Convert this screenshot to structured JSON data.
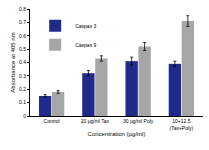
{
  "chart_data": {
    "type": "bar",
    "x_label": "Concentration (µg/ml)",
    "y_label": "Absorbance at 405 nm",
    "categories": [
      "Control",
      "10 µg/ml Tax",
      "30 µg/ml Poly",
      "10+12.5 (Tax+Poly)"
    ],
    "series": [
      {
        "name": "Caspas 3",
        "color": "#1f2a8a",
        "values": [
          0.15,
          0.32,
          0.41,
          0.39
        ],
        "errors": [
          0.01,
          0.02,
          0.03,
          0.02
        ]
      },
      {
        "name": "Caspas 9",
        "color": "#a6a6a6",
        "values": [
          0.18,
          0.43,
          0.52,
          0.71
        ],
        "errors": [
          0.01,
          0.02,
          0.03,
          0.04
        ]
      }
    ],
    "ylim": [
      0,
      0.8
    ],
    "yticks": [
      0,
      0.1,
      0.2,
      0.3,
      0.4,
      0.5,
      0.6,
      0.7,
      0.8
    ],
    "grid": false,
    "legend": "top left"
  }
}
